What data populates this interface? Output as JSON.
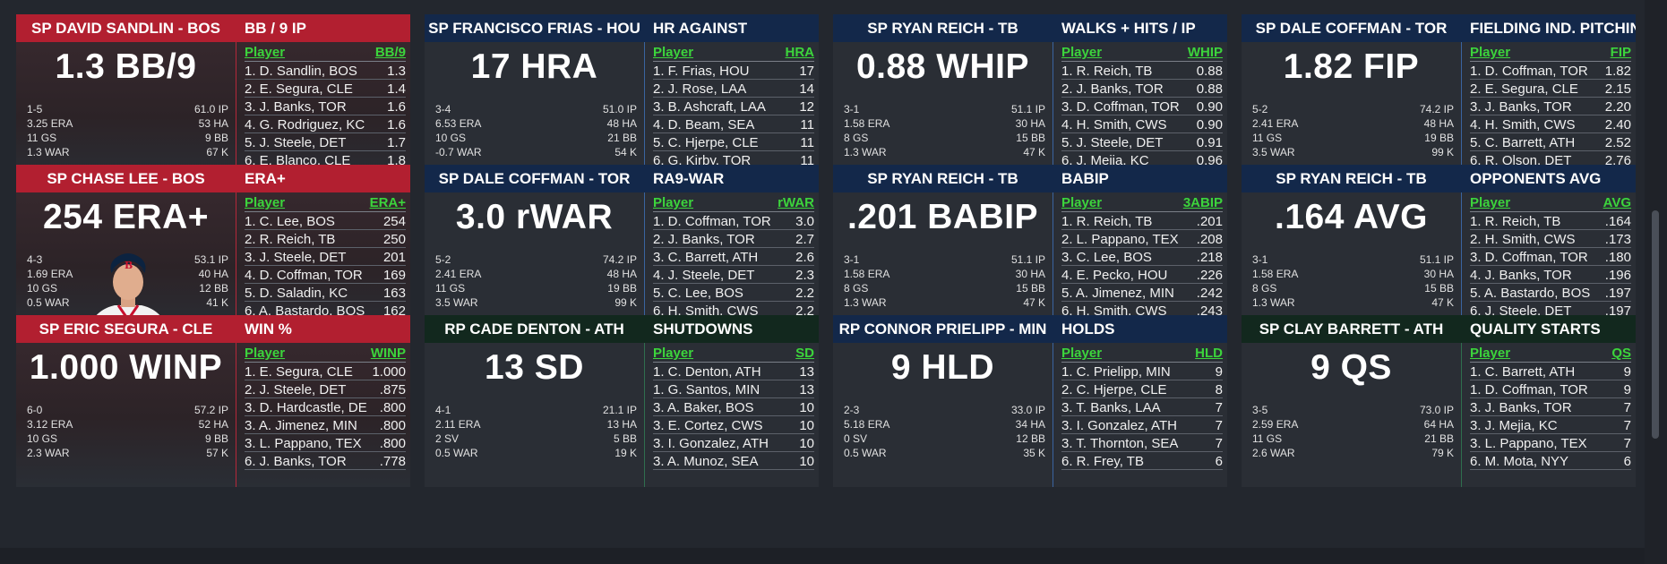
{
  "cards": [
    {
      "theme": "red",
      "player": "SP DAVID SANDLIN - BOS",
      "stat": "BB / 9 IP",
      "big": "1.3 BB/9",
      "left": [
        "1-5",
        "3.25 ERA",
        "11 GS",
        "1.3 WAR"
      ],
      "right": [
        "61.0 IP",
        "53 HA",
        "9 BB",
        "67 K"
      ],
      "col_player": "Player",
      "col_stat": "BB/9",
      "leaders": [
        {
          "name": "1. D. Sandlin, BOS",
          "value": "1.3"
        },
        {
          "name": "2. E. Segura, CLE",
          "value": "1.4"
        },
        {
          "name": "3. J. Banks, TOR",
          "value": "1.6"
        },
        {
          "name": "4. G. Rodriguez, KC",
          "value": "1.6"
        },
        {
          "name": "5. J. Steele, DET",
          "value": "1.7"
        },
        {
          "name": "6. E. Blanco, CLE",
          "value": "1.8"
        }
      ]
    },
    {
      "theme": "blue",
      "player": "SP FRANCISCO FRIAS - HOU",
      "stat": "HR AGAINST",
      "big": "17 HRA",
      "left": [
        "3-4",
        "6.53 ERA",
        "10 GS",
        "-0.7 WAR"
      ],
      "right": [
        "51.0 IP",
        "48 HA",
        "21 BB",
        "54 K"
      ],
      "col_player": "Player",
      "col_stat": "HRA",
      "leaders": [
        {
          "name": "1. F. Frias, HOU",
          "value": "17"
        },
        {
          "name": "2. J. Rose, LAA",
          "value": "14"
        },
        {
          "name": "3. B. Ashcraft, LAA",
          "value": "12"
        },
        {
          "name": "4. D. Beam, SEA",
          "value": "11"
        },
        {
          "name": "5. C. Hjerpe, CLE",
          "value": "11"
        },
        {
          "name": "6. G. Kirby, TOR",
          "value": "11"
        }
      ]
    },
    {
      "theme": "blue",
      "player": "SP RYAN REICH - TB",
      "stat": "WALKS + HITS / IP",
      "big": "0.88 WHIP",
      "left": [
        "3-1",
        "1.58 ERA",
        "8 GS",
        "1.3 WAR"
      ],
      "right": [
        "51.1 IP",
        "30 HA",
        "15 BB",
        "47 K"
      ],
      "col_player": "Player",
      "col_stat": "WHIP",
      "leaders": [
        {
          "name": "1. R. Reich, TB",
          "value": "0.88"
        },
        {
          "name": "2. J. Banks, TOR",
          "value": "0.88"
        },
        {
          "name": "3. D. Coffman, TOR",
          "value": "0.90"
        },
        {
          "name": "4. H. Smith, CWS",
          "value": "0.90"
        },
        {
          "name": "5. J. Steele, DET",
          "value": "0.91"
        },
        {
          "name": "6. J. Mejia, KC",
          "value": "0.96"
        }
      ]
    },
    {
      "theme": "blue",
      "player": "SP DALE COFFMAN - TOR",
      "stat": "FIELDING IND. PITCHING",
      "big": "1.82 FIP",
      "left": [
        "5-2",
        "2.41 ERA",
        "11 GS",
        "3.5 WAR"
      ],
      "right": [
        "74.2 IP",
        "48 HA",
        "19 BB",
        "99 K"
      ],
      "col_player": "Player",
      "col_stat": "FIP",
      "leaders": [
        {
          "name": "1. D. Coffman, TOR",
          "value": "1.82"
        },
        {
          "name": "2. E. Segura, CLE",
          "value": "2.15"
        },
        {
          "name": "3. J. Banks, TOR",
          "value": "2.20"
        },
        {
          "name": "4. H. Smith, CWS",
          "value": "2.40"
        },
        {
          "name": "5. C. Barrett, ATH",
          "value": "2.52"
        },
        {
          "name": "6. R. Olson, DET",
          "value": "2.76"
        }
      ]
    },
    {
      "theme": "red",
      "player": "SP CHASE LEE - BOS",
      "stat": "ERA+",
      "big": "254 ERA+",
      "photo": true,
      "left": [
        "4-3",
        "1.69 ERA",
        "10 GS",
        "0.5 WAR"
      ],
      "right": [
        "53.1 IP",
        "40 HA",
        "12 BB",
        "41 K"
      ],
      "col_player": "Player",
      "col_stat": "ERA+",
      "leaders": [
        {
          "name": "1. C. Lee, BOS",
          "value": "254"
        },
        {
          "name": "2. R. Reich, TB",
          "value": "250"
        },
        {
          "name": "3. J. Steele, DET",
          "value": "201"
        },
        {
          "name": "4. D. Coffman, TOR",
          "value": "169"
        },
        {
          "name": "5. D. Saladin, KC",
          "value": "163"
        },
        {
          "name": "6. A. Bastardo, BOS",
          "value": "162"
        }
      ]
    },
    {
      "theme": "blue",
      "player": "SP DALE COFFMAN - TOR",
      "stat": "RA9-WAR",
      "big": "3.0 rWAR",
      "left": [
        "5-2",
        "2.41 ERA",
        "11 GS",
        "3.5 WAR"
      ],
      "right": [
        "74.2 IP",
        "48 HA",
        "19 BB",
        "99 K"
      ],
      "col_player": "Player",
      "col_stat": "rWAR",
      "leaders": [
        {
          "name": "1. D. Coffman, TOR",
          "value": "3.0"
        },
        {
          "name": "2. J. Banks, TOR",
          "value": "2.7"
        },
        {
          "name": "3. C. Barrett, ATH",
          "value": "2.6"
        },
        {
          "name": "4. J. Steele, DET",
          "value": "2.3"
        },
        {
          "name": "5. C. Lee, BOS",
          "value": "2.2"
        },
        {
          "name": "6. H. Smith, CWS",
          "value": "2.2"
        }
      ]
    },
    {
      "theme": "blue",
      "player": "SP RYAN REICH - TB",
      "stat": "BABIP",
      "big": ".201 BABIP",
      "left": [
        "3-1",
        "1.58 ERA",
        "8 GS",
        "1.3 WAR"
      ],
      "right": [
        "51.1 IP",
        "30 HA",
        "15 BB",
        "47 K"
      ],
      "col_player": "Player",
      "col_stat": "3ABIP",
      "leaders": [
        {
          "name": "1. R. Reich, TB",
          "value": ".201"
        },
        {
          "name": "2. L. Pappano, TEX",
          "value": ".208"
        },
        {
          "name": "3. C. Lee, BOS",
          "value": ".218"
        },
        {
          "name": "4. E. Pecko, HOU",
          "value": ".226"
        },
        {
          "name": "5. A. Jimenez, MIN",
          "value": ".242"
        },
        {
          "name": "6. H. Smith, CWS",
          "value": ".243"
        }
      ]
    },
    {
      "theme": "blue",
      "player": "SP RYAN REICH - TB",
      "stat": "OPPONENTS AVG",
      "big": ".164 AVG",
      "left": [
        "3-1",
        "1.58 ERA",
        "8 GS",
        "1.3 WAR"
      ],
      "right": [
        "51.1 IP",
        "30 HA",
        "15 BB",
        "47 K"
      ],
      "col_player": "Player",
      "col_stat": "AVG",
      "leaders": [
        {
          "name": "1. R. Reich, TB",
          "value": ".164"
        },
        {
          "name": "2. H. Smith, CWS",
          "value": ".173"
        },
        {
          "name": "3. D. Coffman, TOR",
          "value": ".180"
        },
        {
          "name": "4. J. Banks, TOR",
          "value": ".196"
        },
        {
          "name": "5. A. Bastardo, BOS",
          "value": ".197"
        },
        {
          "name": "6. J. Steele, DET",
          "value": ".197"
        }
      ]
    },
    {
      "theme": "red",
      "player": "SP ERIC SEGURA - CLE",
      "stat": "WIN %",
      "big": "1.000 WINP",
      "left": [
        "6-0",
        "3.12 ERA",
        "10 GS",
        "2.3 WAR"
      ],
      "right": [
        "57.2 IP",
        "52 HA",
        "9 BB",
        "57 K"
      ],
      "col_player": "Player",
      "col_stat": "WINP",
      "leaders": [
        {
          "name": "1. E. Segura, CLE",
          "value": "1.000"
        },
        {
          "name": "2. J. Steele, DET",
          "value": ".875"
        },
        {
          "name": "3. D. Hardcastle, DE",
          "value": ".800"
        },
        {
          "name": "3. A. Jimenez, MIN",
          "value": ".800"
        },
        {
          "name": "3. L. Pappano, TEX",
          "value": ".800"
        },
        {
          "name": "6. J. Banks, TOR",
          "value": ".778"
        }
      ]
    },
    {
      "theme": "green",
      "player": "RP CADE DENTON - ATH",
      "stat": "SHUTDOWNS",
      "big": "13 SD",
      "left": [
        "4-1",
        "2.11 ERA",
        "2 SV",
        "0.5 WAR"
      ],
      "right": [
        "21.1 IP",
        "13 HA",
        "5 BB",
        "19 K"
      ],
      "col_player": "Player",
      "col_stat": "SD",
      "leaders": [
        {
          "name": "1. C. Denton, ATH",
          "value": "13"
        },
        {
          "name": "1. G. Santos, MIN",
          "value": "13"
        },
        {
          "name": "3. A. Baker, BOS",
          "value": "10"
        },
        {
          "name": "3. E. Cortez, CWS",
          "value": "10"
        },
        {
          "name": "3. I. Gonzalez, ATH",
          "value": "10"
        },
        {
          "name": "3. A. Munoz, SEA",
          "value": "10"
        }
      ]
    },
    {
      "theme": "blue",
      "player": "RP CONNOR PRIELIPP - MIN",
      "stat": "HOLDS",
      "big": "9 HLD",
      "left": [
        "2-3",
        "5.18 ERA",
        "0 SV",
        "0.5 WAR"
      ],
      "right": [
        "33.0 IP",
        "34 HA",
        "12 BB",
        "35 K"
      ],
      "col_player": "Player",
      "col_stat": "HLD",
      "leaders": [
        {
          "name": "1. C. Prielipp, MIN",
          "value": "9"
        },
        {
          "name": "2. C. Hjerpe, CLE",
          "value": "8"
        },
        {
          "name": "3. T. Banks, LAA",
          "value": "7"
        },
        {
          "name": "3. I. Gonzalez, ATH",
          "value": "7"
        },
        {
          "name": "3. T. Thornton, SEA",
          "value": "7"
        },
        {
          "name": "6. R. Frey, TB",
          "value": "6"
        }
      ]
    },
    {
      "theme": "green",
      "player": "SP CLAY BARRETT - ATH",
      "stat": "QUALITY STARTS",
      "big": "9 QS",
      "left": [
        "3-5",
        "2.59 ERA",
        "11 GS",
        "2.6 WAR"
      ],
      "right": [
        "73.0 IP",
        "64 HA",
        "21 BB",
        "79 K"
      ],
      "col_player": "Player",
      "col_stat": "QS",
      "leaders": [
        {
          "name": "1. C. Barrett, ATH",
          "value": "9"
        },
        {
          "name": "1. D. Coffman, TOR",
          "value": "9"
        },
        {
          "name": "3. J. Banks, TOR",
          "value": "7"
        },
        {
          "name": "3. J. Mejia, KC",
          "value": "7"
        },
        {
          "name": "3. L. Pappano, TEX",
          "value": "7"
        },
        {
          "name": "6. M. Mota, NYY",
          "value": "6"
        }
      ]
    }
  ]
}
